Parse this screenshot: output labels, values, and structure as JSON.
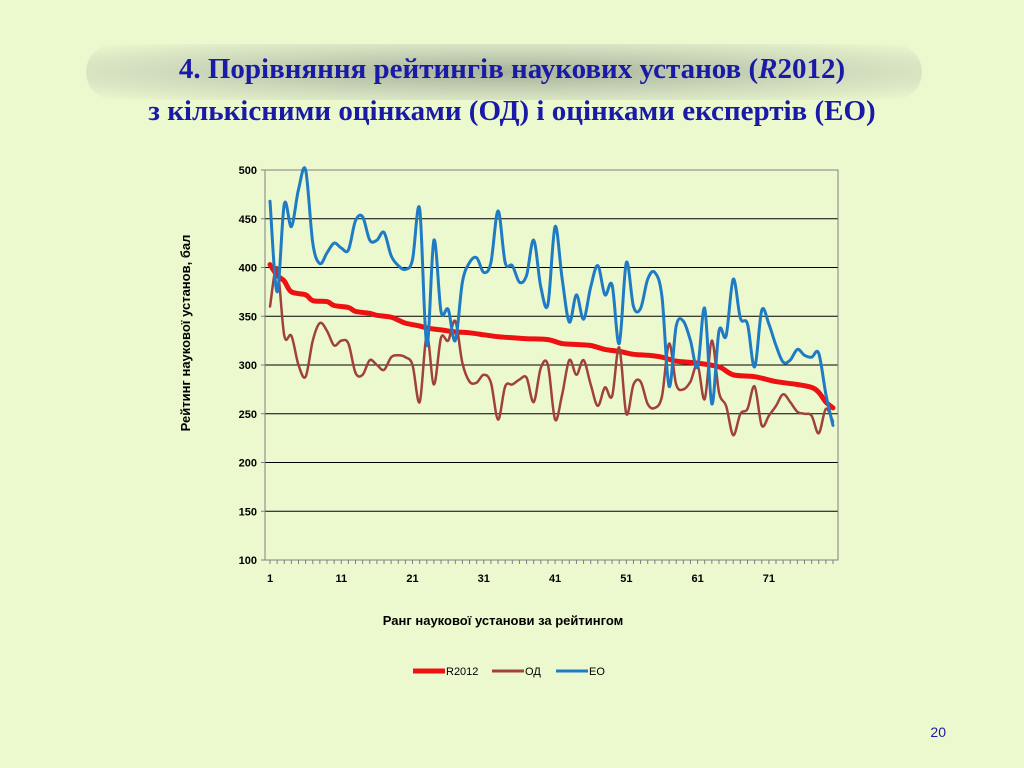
{
  "slide": {
    "title_line1_prefix": "4. Порівняння рейтингів наукових установ (",
    "title_line1_italic": "R",
    "title_line1_suffix": "2012)",
    "title_line2": "з кількісними оцінками (ОД) і оцінками експертів (ЕО)",
    "page_number": "20"
  },
  "colors": {
    "r2012": "#ee1111",
    "od": "#a0413c",
    "eo": "#1f7bc4",
    "title": "#1a1aa6"
  },
  "chart_data": {
    "type": "line",
    "xlabel": "Ранг наукової установи за рейтингом",
    "ylabel": "Рейтинг наукової установ, бал",
    "ylim": [
      100,
      500
    ],
    "yticks": [
      100,
      150,
      200,
      250,
      300,
      350,
      400,
      450,
      500
    ],
    "xlim": [
      1,
      80
    ],
    "xticks": [
      1,
      11,
      21,
      31,
      41,
      51,
      61,
      71
    ],
    "grid": true,
    "legend_position": "bottom",
    "series": [
      {
        "name": "R2012",
        "color": "#ee1111",
        "points": [
          [
            1,
            403
          ],
          [
            2,
            392
          ],
          [
            3,
            386
          ],
          [
            4,
            375
          ],
          [
            6,
            372
          ],
          [
            7,
            366
          ],
          [
            9,
            365
          ],
          [
            10,
            361
          ],
          [
            12,
            359
          ],
          [
            13,
            355
          ],
          [
            15,
            353
          ],
          [
            16,
            351
          ],
          [
            18,
            349
          ],
          [
            19,
            346
          ],
          [
            20,
            343
          ],
          [
            22,
            340
          ],
          [
            23,
            338
          ],
          [
            25,
            336
          ],
          [
            27,
            334
          ],
          [
            29,
            333
          ],
          [
            31,
            331
          ],
          [
            33,
            329
          ],
          [
            35,
            328
          ],
          [
            37,
            327
          ],
          [
            40,
            326
          ],
          [
            42,
            322
          ],
          [
            44,
            321
          ],
          [
            46,
            320
          ],
          [
            48,
            316
          ],
          [
            50,
            314
          ],
          [
            52,
            311
          ],
          [
            54,
            310
          ],
          [
            56,
            308
          ],
          [
            58,
            304
          ],
          [
            61,
            302
          ],
          [
            64,
            298
          ],
          [
            66,
            290
          ],
          [
            69,
            288
          ],
          [
            72,
            283
          ],
          [
            75,
            280
          ],
          [
            77,
            277
          ],
          [
            78,
            272
          ],
          [
            79,
            262
          ],
          [
            80,
            256
          ]
        ]
      },
      {
        "name": "ОД",
        "color": "#a0413c",
        "points": [
          [
            1,
            360
          ],
          [
            2,
            400
          ],
          [
            3,
            330
          ],
          [
            4,
            330
          ],
          [
            5,
            300
          ],
          [
            6,
            288
          ],
          [
            7,
            325
          ],
          [
            8,
            343
          ],
          [
            9,
            335
          ],
          [
            10,
            320
          ],
          [
            11,
            325
          ],
          [
            12,
            322
          ],
          [
            13,
            292
          ],
          [
            14,
            290
          ],
          [
            15,
            305
          ],
          [
            16,
            300
          ],
          [
            17,
            295
          ],
          [
            18,
            308
          ],
          [
            19,
            310
          ],
          [
            20,
            308
          ],
          [
            21,
            300
          ],
          [
            22,
            262
          ],
          [
            23,
            330
          ],
          [
            24,
            280
          ],
          [
            25,
            328
          ],
          [
            26,
            325
          ],
          [
            27,
            345
          ],
          [
            28,
            302
          ],
          [
            29,
            283
          ],
          [
            30,
            282
          ],
          [
            31,
            290
          ],
          [
            32,
            282
          ],
          [
            33,
            244
          ],
          [
            34,
            278
          ],
          [
            35,
            280
          ],
          [
            36,
            285
          ],
          [
            37,
            287
          ],
          [
            38,
            262
          ],
          [
            39,
            297
          ],
          [
            40,
            300
          ],
          [
            41,
            244
          ],
          [
            42,
            270
          ],
          [
            43,
            305
          ],
          [
            44,
            290
          ],
          [
            45,
            305
          ],
          [
            46,
            280
          ],
          [
            47,
            258
          ],
          [
            48,
            277
          ],
          [
            49,
            268
          ],
          [
            50,
            318
          ],
          [
            51,
            250
          ],
          [
            52,
            280
          ],
          [
            53,
            283
          ],
          [
            54,
            260
          ],
          [
            55,
            256
          ],
          [
            56,
            268
          ],
          [
            57,
            322
          ],
          [
            58,
            280
          ],
          [
            59,
            275
          ],
          [
            60,
            283
          ],
          [
            61,
            300
          ],
          [
            62,
            265
          ],
          [
            63,
            325
          ],
          [
            64,
            272
          ],
          [
            65,
            258
          ],
          [
            66,
            228
          ],
          [
            67,
            250
          ],
          [
            68,
            255
          ],
          [
            69,
            278
          ],
          [
            70,
            238
          ],
          [
            71,
            248
          ],
          [
            72,
            258
          ],
          [
            73,
            270
          ],
          [
            74,
            262
          ],
          [
            75,
            252
          ],
          [
            76,
            250
          ],
          [
            77,
            248
          ],
          [
            78,
            230
          ],
          [
            79,
            255
          ],
          [
            80,
            242
          ]
        ]
      },
      {
        "name": "ЕО",
        "color": "#1f7bc4",
        "points": [
          [
            1,
            468
          ],
          [
            2,
            375
          ],
          [
            3,
            465
          ],
          [
            4,
            442
          ],
          [
            5,
            480
          ],
          [
            6,
            500
          ],
          [
            7,
            425
          ],
          [
            8,
            404
          ],
          [
            9,
            415
          ],
          [
            10,
            425
          ],
          [
            11,
            420
          ],
          [
            12,
            418
          ],
          [
            13,
            448
          ],
          [
            14,
            452
          ],
          [
            15,
            428
          ],
          [
            16,
            428
          ],
          [
            17,
            436
          ],
          [
            18,
            412
          ],
          [
            19,
            402
          ],
          [
            20,
            398
          ],
          [
            21,
            408
          ],
          [
            22,
            460
          ],
          [
            23,
            320
          ],
          [
            24,
            428
          ],
          [
            25,
            355
          ],
          [
            26,
            357
          ],
          [
            27,
            325
          ],
          [
            28,
            385
          ],
          [
            29,
            405
          ],
          [
            30,
            410
          ],
          [
            31,
            395
          ],
          [
            32,
            405
          ],
          [
            33,
            458
          ],
          [
            34,
            405
          ],
          [
            35,
            402
          ],
          [
            36,
            385
          ],
          [
            37,
            392
          ],
          [
            38,
            428
          ],
          [
            39,
            380
          ],
          [
            40,
            362
          ],
          [
            41,
            442
          ],
          [
            42,
            388
          ],
          [
            43,
            344
          ],
          [
            44,
            372
          ],
          [
            45,
            347
          ],
          [
            46,
            380
          ],
          [
            47,
            402
          ],
          [
            48,
            372
          ],
          [
            49,
            382
          ],
          [
            50,
            322
          ],
          [
            51,
            405
          ],
          [
            52,
            360
          ],
          [
            53,
            358
          ],
          [
            54,
            388
          ],
          [
            55,
            395
          ],
          [
            56,
            370
          ],
          [
            57,
            278
          ],
          [
            58,
            340
          ],
          [
            59,
            345
          ],
          [
            60,
            325
          ],
          [
            61,
            298
          ],
          [
            62,
            358
          ],
          [
            63,
            260
          ],
          [
            64,
            335
          ],
          [
            65,
            330
          ],
          [
            66,
            388
          ],
          [
            67,
            348
          ],
          [
            68,
            342
          ],
          [
            69,
            298
          ],
          [
            70,
            356
          ],
          [
            71,
            342
          ],
          [
            72,
            320
          ],
          [
            73,
            303
          ],
          [
            74,
            305
          ],
          [
            75,
            316
          ],
          [
            76,
            310
          ],
          [
            77,
            308
          ],
          [
            78,
            312
          ],
          [
            79,
            270
          ],
          [
            80,
            238
          ]
        ]
      }
    ]
  }
}
